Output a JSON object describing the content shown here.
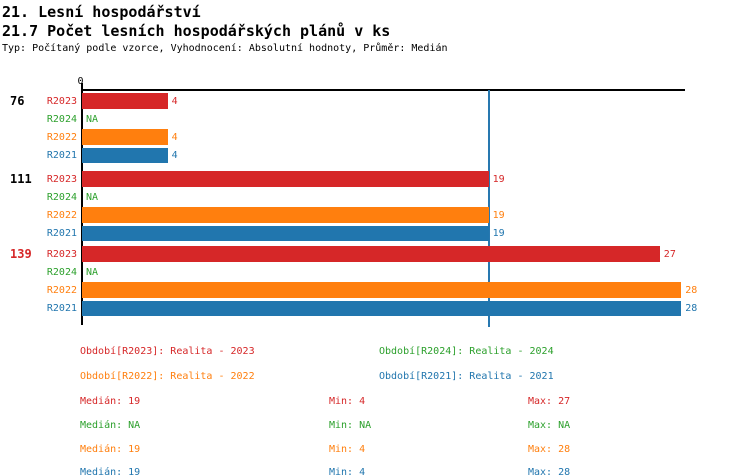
{
  "header": {
    "title": "21. Lesní hospodářství",
    "subtitle": "21.7 Počet lesních hospodářských plánů v ks",
    "meta": "Typ: Počítaný podle vzorce, Vyhodnocení: Absolutní hodnoty, Průměr: Medián"
  },
  "colors": {
    "R2023": "#d62728",
    "R2024": "#2ca02c",
    "R2022": "#ff7f0e",
    "R2021": "#2176ae",
    "axis": "#000000",
    "median_line": "#2878b0",
    "group_label_default": "#000000"
  },
  "chart_data": {
    "type": "bar",
    "orientation": "horizontal",
    "title": "21.7 Počet lesních hospodářských plánů v ks",
    "xlabel": "",
    "ylabel": "",
    "x_axis": {
      "zero_label": "0",
      "min": 0,
      "max": 28,
      "grid": false
    },
    "median_line_value": 19,
    "na_text": "NA",
    "series_order": [
      "R2023",
      "R2024",
      "R2022",
      "R2021"
    ],
    "groups": [
      {
        "label": "76",
        "label_color": "#000000",
        "bars": [
          {
            "series": "R2023",
            "value": 4,
            "value_label": "4"
          },
          {
            "series": "R2024",
            "value": null,
            "value_label": "NA"
          },
          {
            "series": "R2022",
            "value": 4,
            "value_label": "4"
          },
          {
            "series": "R2021",
            "value": 4,
            "value_label": "4"
          }
        ]
      },
      {
        "label": "111",
        "label_color": "#000000",
        "bars": [
          {
            "series": "R2023",
            "value": 19,
            "value_label": "19"
          },
          {
            "series": "R2024",
            "value": null,
            "value_label": "NA"
          },
          {
            "series": "R2022",
            "value": 19,
            "value_label": "19"
          },
          {
            "series": "R2021",
            "value": 19,
            "value_label": "19"
          }
        ]
      },
      {
        "label": "139",
        "label_color": "#d62728",
        "bars": [
          {
            "series": "R2023",
            "value": 27,
            "value_label": "27"
          },
          {
            "series": "R2024",
            "value": null,
            "value_label": "NA"
          },
          {
            "series": "R2022",
            "value": 28,
            "value_label": "28"
          },
          {
            "series": "R2021",
            "value": 28,
            "value_label": "28"
          }
        ]
      }
    ]
  },
  "legend": [
    {
      "text": "Období[R2023]: Realita - 2023",
      "series": "R2023",
      "col": 0,
      "row": 0
    },
    {
      "text": "Období[R2024]: Realita - 2024",
      "series": "R2024",
      "col": 1,
      "row": 0
    },
    {
      "text": "Období[R2022]: Realita - 2022",
      "series": "R2022",
      "col": 0,
      "row": 1
    },
    {
      "text": "Období[R2021]: Realita - 2021",
      "series": "R2021",
      "col": 1,
      "row": 1
    }
  ],
  "stats": [
    {
      "series": "R2023",
      "median": "Medián: 19",
      "min": "Min: 4",
      "max": "Max: 27"
    },
    {
      "series": "R2024",
      "median": "Medián: NA",
      "min": "Min: NA",
      "max": "Max: NA"
    },
    {
      "series": "R2022",
      "median": "Medián: 19",
      "min": "Min: 4",
      "max": "Max: 28"
    },
    {
      "series": "R2021",
      "median": "Medián: 19",
      "min": "Min: 4",
      "max": "Max: 28"
    }
  ]
}
